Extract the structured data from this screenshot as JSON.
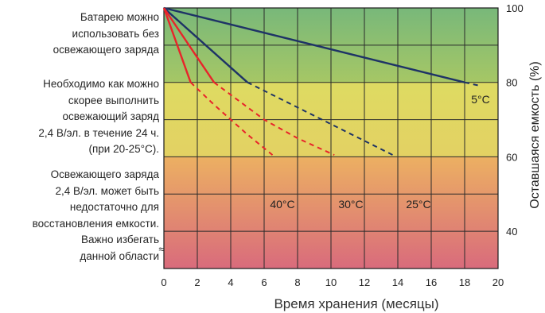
{
  "zones": [
    {
      "text": [
        "Батарею можно",
        "использовать без",
        "освежающего заряда"
      ],
      "y_from": 80,
      "y_to": 100,
      "color_top": "#78b87a",
      "color_bottom": "#a6c765"
    },
    {
      "text": [
        "Необходимо как можно",
        "скорее выполнить",
        "освежающий заряд",
        "2,4 В/эл. в течение 24 ч.",
        "(при 20-25°C)."
      ],
      "y_from": 60,
      "y_to": 80,
      "color_top": "#dedb62",
      "color_bottom": "#e3d163"
    },
    {
      "text": [
        "Освежающего заряда",
        "2,4 В/эл. может быть",
        "недостаточно для",
        "восстановления емкости.",
        "Важно избегать",
        "данной области"
      ],
      "y_from": 30,
      "y_to": 60,
      "color_top": "#ecb062",
      "color_bottom": "#d96b7c"
    }
  ],
  "chart_data": {
    "type": "line",
    "xlabel": "Время хранения (месяцы)",
    "ylabel": "Оставшаяся емкость (%)",
    "xlim": [
      0,
      20
    ],
    "ylim": [
      30,
      100
    ],
    "x_ticks": [
      "0",
      "2",
      "4",
      "6",
      "8",
      "10",
      "12",
      "14",
      "16",
      "18",
      "20"
    ],
    "y_ticks": [
      {
        "value": 100,
        "label": "100"
      },
      {
        "value": 80,
        "label": "80"
      },
      {
        "value": 60,
        "label": "60"
      },
      {
        "value": 40,
        "label": "40"
      }
    ],
    "axis_break": "≈",
    "grid": true,
    "series": [
      {
        "name": "5°C",
        "color": "#1e3366",
        "solid": [
          [
            0,
            100
          ],
          [
            18,
            80
          ]
        ],
        "dashed": [
          [
            18,
            80
          ],
          [
            19,
            79
          ]
        ]
      },
      {
        "name": "25°C",
        "color": "#1e3366",
        "solid": [
          [
            0,
            100
          ],
          [
            5,
            80
          ]
        ],
        "dashed": [
          [
            5,
            80
          ],
          [
            13.7,
            60.5
          ]
        ]
      },
      {
        "name": "30°C",
        "color": "#e8242a",
        "solid": [
          [
            0,
            100
          ],
          [
            3,
            80
          ]
        ],
        "dashed": [
          [
            3,
            80
          ],
          [
            6,
            70
          ],
          [
            8,
            65
          ],
          [
            10.2,
            60.5
          ]
        ]
      },
      {
        "name": "40°C",
        "color": "#e8242a",
        "solid": [
          [
            0,
            100
          ],
          [
            1.6,
            80
          ]
        ],
        "dashed": [
          [
            1.6,
            80
          ],
          [
            3,
            74
          ],
          [
            5,
            66
          ],
          [
            6.5,
            60.5
          ]
        ]
      }
    ]
  }
}
